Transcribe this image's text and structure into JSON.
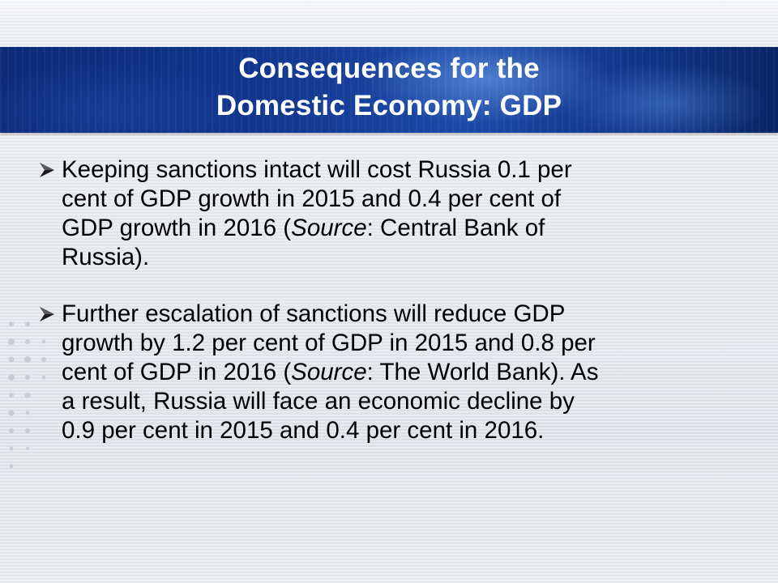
{
  "slide": {
    "title_lines": [
      "Consequences for the",
      "Domestic Economy: GDP"
    ],
    "bullets": [
      {
        "lines": [
          {
            "parts": [
              "Keeping sanctions intact will cost Russia 0.1 per"
            ]
          },
          {
            "parts": [
              "cent of GDP growth in 2015 and 0.4 per cent of"
            ]
          },
          {
            "parts": [
              "GDP growth in 2016 (",
              "Source",
              ": Central Bank of"
            ]
          },
          {
            "parts": [
              "Russia)."
            ]
          }
        ]
      },
      {
        "lines": [
          {
            "parts": [
              "Further escalation of sanctions will reduce GDP"
            ]
          },
          {
            "parts": [
              "growth by 1.2 per cent of GDP in 2015 and 0.8 per"
            ]
          },
          {
            "parts": [
              "cent of GDP in 2016 (",
              "Source",
              ": The World Bank). As"
            ]
          },
          {
            "parts": [
              "a result, Russia will face an economic decline by"
            ]
          },
          {
            "parts": [
              "0.9 per cent in 2015 and 0.4 per cent in 2016."
            ]
          }
        ]
      }
    ],
    "bullet_icon": "arrow-bullet-icon",
    "colors": {
      "band": "#12378f",
      "title_text": "#ffffff",
      "body_text": "#000000"
    }
  }
}
